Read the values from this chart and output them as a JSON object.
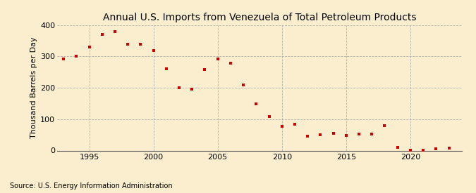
{
  "title": "Annual U.S. Imports from Venezuela of Total Petroleum Products",
  "ylabel": "Thousand Barrels per Day",
  "source": "Source: U.S. Energy Information Administration",
  "years": [
    1993,
    1994,
    1995,
    1996,
    1997,
    1998,
    1999,
    2000,
    2001,
    2002,
    2003,
    2004,
    2005,
    2006,
    2007,
    2008,
    2009,
    2010,
    2011,
    2012,
    2013,
    2014,
    2015,
    2016,
    2017,
    2018,
    2019,
    2020,
    2021,
    2022,
    2023
  ],
  "values": [
    293,
    300,
    330,
    370,
    380,
    340,
    340,
    320,
    260,
    200,
    195,
    258,
    292,
    278,
    210,
    148,
    108,
    77,
    83,
    45,
    50,
    55,
    48,
    52,
    52,
    80,
    10,
    2,
    1,
    5,
    8
  ],
  "marker_color": "#cc0000",
  "marker": "s",
  "marker_size": 3.5,
  "bg_color": "#faeece",
  "plot_bg_color": "#faeece",
  "grid_color": "#aaaaaa",
  "ylim": [
    0,
    400
  ],
  "xlim": [
    1992.5,
    2024
  ],
  "yticks": [
    0,
    100,
    200,
    300,
    400
  ],
  "xticks": [
    1995,
    2000,
    2005,
    2010,
    2015,
    2020
  ],
  "title_fontsize": 10,
  "label_fontsize": 8,
  "tick_fontsize": 8,
  "source_fontsize": 7
}
